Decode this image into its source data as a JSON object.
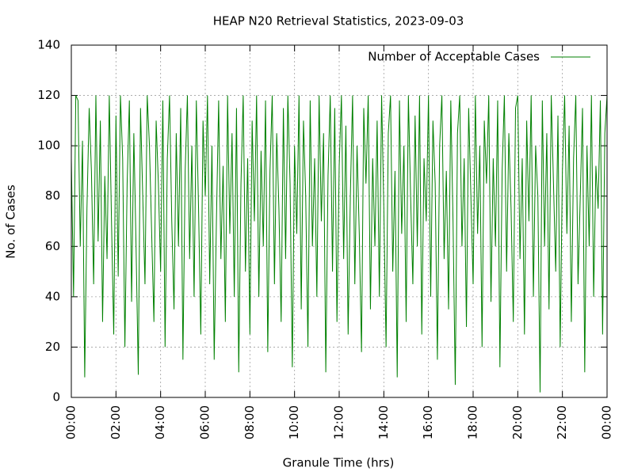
{
  "chart_data": {
    "type": "line",
    "title": "HEAP N20 Retrieval Statistics, 2023-09-03",
    "xlabel": "Granule Time (hrs)",
    "ylabel": "No. of Cases",
    "xlim": [
      0,
      1440
    ],
    "ylim": [
      0,
      140
    ],
    "xticks": [
      {
        "value": 0,
        "label": "00:00"
      },
      {
        "value": 120,
        "label": "02:00"
      },
      {
        "value": 240,
        "label": "04:00"
      },
      {
        "value": 360,
        "label": "06:00"
      },
      {
        "value": 480,
        "label": "08:00"
      },
      {
        "value": 600,
        "label": "10:00"
      },
      {
        "value": 720,
        "label": "12:00"
      },
      {
        "value": 840,
        "label": "14:00"
      },
      {
        "value": 960,
        "label": "16:00"
      },
      {
        "value": 1080,
        "label": "18:00"
      },
      {
        "value": 1200,
        "label": "20:00"
      },
      {
        "value": 1320,
        "label": "22:00"
      },
      {
        "value": 1440,
        "label": "00:00"
      }
    ],
    "yticks": [
      0,
      20,
      40,
      60,
      80,
      100,
      120,
      140
    ],
    "grid": true,
    "legend": "top right",
    "x": [
      0,
      6,
      12,
      18,
      24,
      30,
      36,
      42,
      48,
      54,
      60,
      66,
      72,
      78,
      84,
      90,
      96,
      102,
      108,
      114,
      120,
      126,
      132,
      138,
      144,
      150,
      156,
      162,
      168,
      174,
      180,
      186,
      192,
      198,
      204,
      210,
      216,
      222,
      228,
      234,
      240,
      246,
      252,
      258,
      264,
      270,
      276,
      282,
      288,
      294,
      300,
      306,
      312,
      318,
      324,
      330,
      336,
      342,
      348,
      354,
      360,
      366,
      372,
      378,
      384,
      390,
      396,
      402,
      408,
      414,
      420,
      426,
      432,
      438,
      444,
      450,
      456,
      462,
      468,
      474,
      480,
      486,
      492,
      498,
      504,
      510,
      516,
      522,
      528,
      534,
      540,
      546,
      552,
      558,
      564,
      570,
      576,
      582,
      588,
      594,
      600,
      606,
      612,
      618,
      624,
      630,
      636,
      642,
      648,
      654,
      660,
      666,
      672,
      678,
      684,
      690,
      696,
      702,
      708,
      714,
      720,
      726,
      732,
      738,
      744,
      750,
      756,
      762,
      768,
      774,
      780,
      786,
      792,
      798,
      804,
      810,
      816,
      822,
      828,
      834,
      840,
      846,
      852,
      858,
      864,
      870,
      876,
      882,
      888,
      894,
      900,
      906,
      912,
      918,
      924,
      930,
      936,
      942,
      948,
      954,
      960,
      966,
      972,
      978,
      984,
      990,
      996,
      1002,
      1008,
      1014,
      1020,
      1026,
      1032,
      1038,
      1044,
      1050,
      1056,
      1062,
      1068,
      1074,
      1080,
      1086,
      1092,
      1098,
      1104,
      1110,
      1116,
      1122,
      1128,
      1134,
      1140,
      1146,
      1152,
      1158,
      1164,
      1170,
      1176,
      1182,
      1188,
      1194,
      1200,
      1206,
      1212,
      1218,
      1224,
      1230,
      1236,
      1242,
      1248,
      1254,
      1260,
      1266,
      1272,
      1278,
      1284,
      1290,
      1296,
      1302,
      1308,
      1314,
      1320,
      1326,
      1332,
      1338,
      1344,
      1350,
      1356,
      1362,
      1368,
      1374,
      1380,
      1386,
      1392,
      1398,
      1404,
      1410,
      1416,
      1422,
      1428,
      1434,
      1440
    ],
    "series": [
      {
        "name": "Number of Acceptable Cases",
        "color": "#008000",
        "values": [
          95,
          40,
          120,
          118,
          60,
          102,
          8,
          75,
          115,
          90,
          45,
          120,
          62,
          110,
          30,
          88,
          55,
          120,
          70,
          25,
          112,
          48,
          120,
          95,
          20,
          85,
          118,
          38,
          105,
          60,
          9,
          115,
          80,
          45,
          120,
          100,
          65,
          30,
          110,
          85,
          50,
          118,
          20,
          95,
          120,
          70,
          35,
          105,
          60,
          115,
          15,
          90,
          120,
          55,
          100,
          40,
          118,
          75,
          25,
          110,
          80,
          120,
          45,
          100,
          15,
          70,
          118,
          55,
          92,
          30,
          120,
          65,
          105,
          40,
          115,
          10,
          85,
          120,
          50,
          95,
          25,
          110,
          70,
          120,
          40,
          98,
          60,
          118,
          18,
          90,
          120,
          45,
          105,
          75,
          30,
          115,
          55,
          120,
          85,
          12,
          100,
          65,
          120,
          35,
          110,
          80,
          20,
          118,
          60,
          95,
          40,
          120,
          70,
          105,
          10,
          88,
          120,
          50,
          115,
          30,
          92,
          120,
          55,
          108,
          25,
          80,
          120,
          45,
          100,
          65,
          18,
          115,
          85,
          120,
          35,
          95,
          60,
          110,
          40,
          120,
          75,
          20,
          105,
          120,
          50,
          90,
          8,
          118,
          65,
          100,
          30,
          120,
          80,
          45,
          112,
          60,
          120,
          25,
          95,
          70,
          120,
          40,
          110,
          85,
          15,
          100,
          120,
          55,
          90,
          35,
          118,
          70,
          5,
          105,
          120,
          60,
          95,
          28,
          115,
          80,
          45,
          120,
          65,
          100,
          20,
          110,
          85,
          120,
          38,
          95,
          60,
          118,
          12,
          90,
          120,
          50,
          105,
          75,
          30,
          115,
          120,
          55,
          95,
          25,
          110,
          70,
          120,
          40,
          100,
          80,
          2,
          118,
          60,
          105,
          35,
          120,
          85,
          50,
          112,
          20,
          90,
          120,
          65,
          108,
          30,
          95,
          120,
          45,
          80,
          115,
          10,
          100,
          60,
          120,
          40,
          92,
          75,
          118,
          25,
          105,
          120
        ]
      }
    ]
  }
}
